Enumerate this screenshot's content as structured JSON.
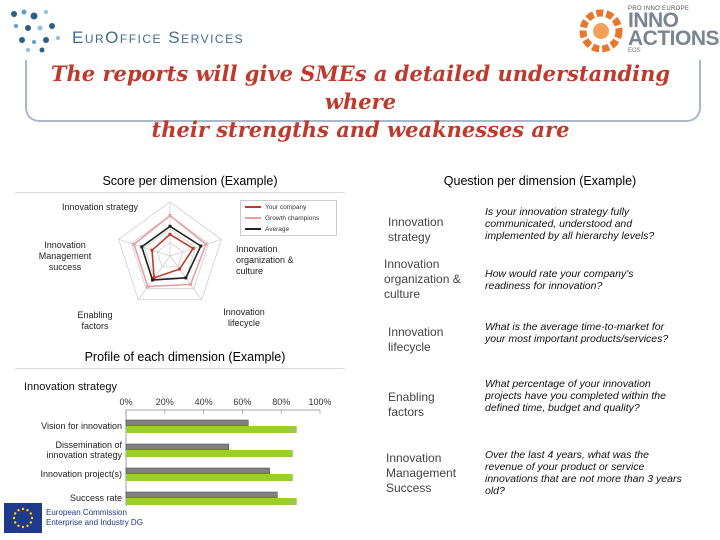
{
  "header": {
    "left_logo_text": "EurOffice Services",
    "right_logo": {
      "top_line": "PRO INNO EUROPE",
      "line1": "INNO",
      "line2": "ACTIONS",
      "bottom_line": "EOS"
    }
  },
  "title": {
    "line1": "The reports will give SMEs a detailed understanding where",
    "line2": "their strengths and weaknesses are"
  },
  "score_panel": {
    "title": "Score per dimension (Example)",
    "axes": [
      "Innovation strategy",
      "Innovation organization & culture",
      "Innovation lifecycle",
      "Enabling factors",
      "Innovation Management success"
    ],
    "legend": [
      "Your company",
      "Growth champions",
      "Average"
    ],
    "legend_colors": [
      "#c0392b",
      "#e8a0a0",
      "#222222"
    ]
  },
  "profile_panel": {
    "title": "Profile of each dimension (Example)",
    "subtitle": "Innovation strategy"
  },
  "question_panel": {
    "title": "Question per dimension (Example)",
    "rows": [
      {
        "dimension": "Innovation strategy",
        "question": "Is your innovation strategy fully communicated, understood and implemented by all hierarchy levels?"
      },
      {
        "dimension": "Innovation organization & culture",
        "question": "How would rate your company's readiness for innovation?"
      },
      {
        "dimension": "Innovation lifecycle",
        "question": "What is the average time-to-market for your most important products/services?"
      },
      {
        "dimension": "Enabling factors",
        "question": "What percentage of your innovation projects have you completed within the defined time, budget and quality?"
      },
      {
        "dimension": "Innovation Management Success",
        "question": "Over the last 4 years, what was the revenue of your product or service innovations that are not more than 3 years old?"
      }
    ]
  },
  "chart_data": [
    {
      "type": "radar",
      "title": "Score per dimension (Example)",
      "categories": [
        "Innovation strategy",
        "Innovation organization & culture",
        "Innovation lifecycle",
        "Enabling factors",
        "Innovation Management success"
      ],
      "series": [
        {
          "name": "Your company",
          "values": [
            40,
            45,
            30,
            50,
            35
          ],
          "color": "#c0392b"
        },
        {
          "name": "Growth champions",
          "values": [
            75,
            70,
            65,
            70,
            70
          ],
          "color": "#e8a0a0"
        },
        {
          "name": "Average",
          "values": [
            55,
            60,
            50,
            55,
            55
          ],
          "color": "#222222"
        }
      ],
      "ylim": [
        0,
        100
      ]
    },
    {
      "type": "bar",
      "orientation": "horizontal",
      "title": "Innovation strategy",
      "categories": [
        "Vision for innovation",
        "Dissemination of innovation strategy",
        "Innovation project(s)",
        "Success rate"
      ],
      "x_ticks": [
        "0%",
        "20%",
        "40%",
        "60%",
        "80%",
        "100%"
      ],
      "xlim": [
        0,
        100
      ],
      "series": [
        {
          "values": [
            63,
            53,
            74,
            78
          ],
          "color": "#808080"
        },
        {
          "values": [
            88,
            86,
            86,
            88
          ],
          "color": "#9acd32"
        }
      ]
    }
  ],
  "footer": {
    "ec_line1": "European Commission",
    "ec_line2": "Enterprise and Industry DG"
  }
}
